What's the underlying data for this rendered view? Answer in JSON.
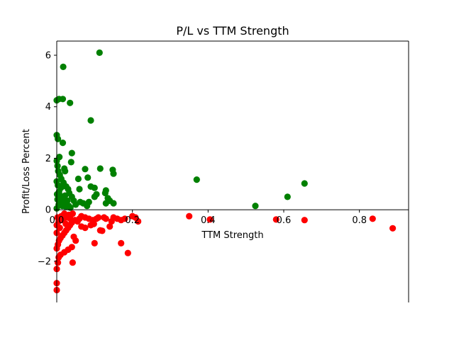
{
  "chart_data": {
    "type": "scatter",
    "title": "P/L vs TTM Strength",
    "xlabel": "TTM Strength",
    "ylabel": "Profit/Loss Percent",
    "xlim": [
      0.0,
      0.93
    ],
    "ylim": [
      -3.6,
      6.55
    ],
    "x_ticks": [
      "0.0",
      "0.2",
      "0.4",
      "0.6",
      "0.8"
    ],
    "y_ticks": [
      "−2",
      "0",
      "2",
      "4",
      "6"
    ],
    "grid": false,
    "legend": "none",
    "colors": {
      "profit": "#008000",
      "loss": "#ff0000"
    },
    "series": [
      {
        "color": "profit",
        "points": [
          [
            0.113,
            6.1
          ],
          [
            0.017,
            5.55
          ],
          [
            0.0,
            4.25
          ],
          [
            0.006,
            4.3
          ],
          [
            0.016,
            4.3
          ],
          [
            0.035,
            4.15
          ],
          [
            0.09,
            3.47
          ],
          [
            0.0,
            2.9
          ],
          [
            0.003,
            2.75
          ],
          [
            0.016,
            2.6
          ],
          [
            0.04,
            2.2
          ],
          [
            0.007,
            2.05
          ],
          [
            0.02,
            1.6
          ],
          [
            0.022,
            1.5
          ],
          [
            0.038,
            1.85
          ],
          [
            0.075,
            1.58
          ],
          [
            0.115,
            1.6
          ],
          [
            0.148,
            1.55
          ],
          [
            0.15,
            1.4
          ],
          [
            0.057,
            1.2
          ],
          [
            0.082,
            1.25
          ],
          [
            0.09,
            0.9
          ],
          [
            0.1,
            0.85
          ],
          [
            0.06,
            0.8
          ],
          [
            0.13,
            0.75
          ],
          [
            0.128,
            0.65
          ],
          [
            0.105,
            0.6
          ],
          [
            0.1,
            0.5
          ],
          [
            0.135,
            0.45
          ],
          [
            0.14,
            0.35
          ],
          [
            0.15,
            0.25
          ],
          [
            0.13,
            0.25
          ],
          [
            0.085,
            0.3
          ],
          [
            0.07,
            0.25
          ],
          [
            0.08,
            0.15
          ],
          [
            0.062,
            0.3
          ],
          [
            0.05,
            0.2
          ],
          [
            0.045,
            0.35
          ],
          [
            0.04,
            0.5
          ],
          [
            0.033,
            0.65
          ],
          [
            0.03,
            0.8
          ],
          [
            0.025,
            0.9
          ],
          [
            0.018,
            1.05
          ],
          [
            0.012,
            1.2
          ],
          [
            0.008,
            1.35
          ],
          [
            0.004,
            1.5
          ],
          [
            0.002,
            1.7
          ],
          [
            0.0,
            1.9
          ],
          [
            0.0,
            1.1
          ],
          [
            0.003,
            0.95
          ],
          [
            0.006,
            0.7
          ],
          [
            0.009,
            0.55
          ],
          [
            0.013,
            0.4
          ],
          [
            0.016,
            0.3
          ],
          [
            0.02,
            0.2
          ],
          [
            0.024,
            0.12
          ],
          [
            0.028,
            0.35
          ],
          [
            0.032,
            0.15
          ],
          [
            0.036,
            0.08
          ],
          [
            0.002,
            0.4
          ],
          [
            0.005,
            0.2
          ],
          [
            0.0,
            0.05
          ],
          [
            0.001,
            0.6
          ],
          [
            0.011,
            0.85
          ],
          [
            0.015,
            0.15
          ],
          [
            0.022,
            0.55
          ],
          [
            0.37,
            1.17
          ],
          [
            0.525,
            0.15
          ],
          [
            0.61,
            0.5
          ],
          [
            0.655,
            1.02
          ]
        ]
      },
      {
        "color": "loss",
        "points": [
          [
            0.0,
            -3.12
          ],
          [
            0.0,
            -2.85
          ],
          [
            0.0,
            -2.3
          ],
          [
            0.003,
            -2.05
          ],
          [
            0.005,
            -1.85
          ],
          [
            0.042,
            -2.05
          ],
          [
            0.01,
            -1.75
          ],
          [
            0.02,
            -1.65
          ],
          [
            0.03,
            -1.55
          ],
          [
            0.04,
            -1.45
          ],
          [
            0.05,
            -1.2
          ],
          [
            0.045,
            -1.05
          ],
          [
            0.1,
            -1.3
          ],
          [
            0.17,
            -1.3
          ],
          [
            0.188,
            -1.68
          ],
          [
            0.115,
            -0.8
          ],
          [
            0.12,
            -0.82
          ],
          [
            0.075,
            -0.7
          ],
          [
            0.065,
            -0.65
          ],
          [
            0.09,
            -0.6
          ],
          [
            0.098,
            -0.55
          ],
          [
            0.14,
            -0.65
          ],
          [
            0.13,
            -0.35
          ],
          [
            0.125,
            -0.3
          ],
          [
            0.11,
            -0.3
          ],
          [
            0.105,
            -0.35
          ],
          [
            0.095,
            -0.4
          ],
          [
            0.085,
            -0.35
          ],
          [
            0.075,
            -0.3
          ],
          [
            0.065,
            -0.25
          ],
          [
            0.06,
            -0.35
          ],
          [
            0.055,
            -0.45
          ],
          [
            0.048,
            -0.4
          ],
          [
            0.04,
            -0.5
          ],
          [
            0.035,
            -0.6
          ],
          [
            0.03,
            -0.7
          ],
          [
            0.025,
            -0.8
          ],
          [
            0.02,
            -0.9
          ],
          [
            0.015,
            -1.0
          ],
          [
            0.01,
            -1.1
          ],
          [
            0.006,
            -1.2
          ],
          [
            0.003,
            -1.35
          ],
          [
            0.0,
            -1.5
          ],
          [
            0.0,
            -0.6
          ],
          [
            0.0,
            -0.9
          ],
          [
            0.002,
            -0.3
          ],
          [
            0.005,
            -0.45
          ],
          [
            0.008,
            -0.7
          ],
          [
            0.012,
            -0.25
          ],
          [
            0.016,
            -0.4
          ],
          [
            0.02,
            -0.15
          ],
          [
            0.024,
            -0.55
          ],
          [
            0.028,
            -0.3
          ],
          [
            0.032,
            -0.2
          ],
          [
            0.036,
            -0.35
          ],
          [
            0.042,
            -0.15
          ],
          [
            0.15,
            -0.3
          ],
          [
            0.145,
            -0.45
          ],
          [
            0.16,
            -0.35
          ],
          [
            0.17,
            -0.4
          ],
          [
            0.18,
            -0.35
          ],
          [
            0.2,
            -0.25
          ],
          [
            0.208,
            -0.3
          ],
          [
            0.215,
            -0.45
          ],
          [
            0.35,
            -0.25
          ],
          [
            0.405,
            -0.38
          ],
          [
            0.58,
            -0.38
          ],
          [
            0.655,
            -0.4
          ],
          [
            0.835,
            -0.35
          ],
          [
            0.888,
            -0.72
          ]
        ]
      }
    ]
  }
}
